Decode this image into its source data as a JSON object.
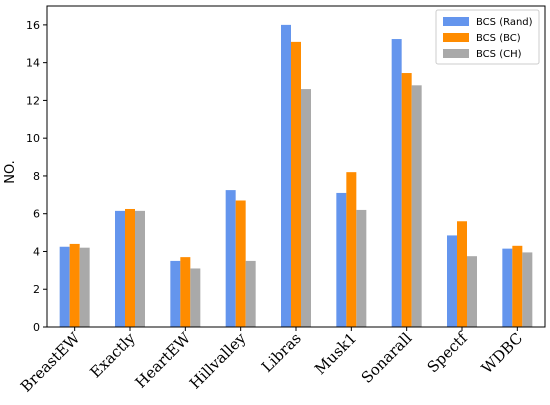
{
  "chart_data": {
    "type": "bar",
    "title": "",
    "xlabel": "",
    "ylabel": "NO.",
    "ylim": [
      0,
      17
    ],
    "yticks": [
      0,
      2,
      4,
      6,
      8,
      10,
      12,
      14,
      16
    ],
    "grid": false,
    "legend_position": "top-right",
    "categories": [
      "BreastEW",
      "Exactly",
      "HeartEW",
      "Hillvalley",
      "Libras",
      "Musk1",
      "Sonarall",
      "Spectf",
      "WDBC"
    ],
    "series": [
      {
        "name": "BCS (Rand)",
        "color": "#6495ED",
        "values": [
          4.25,
          6.15,
          3.5,
          7.25,
          16.0,
          7.1,
          15.25,
          4.85,
          4.15
        ]
      },
      {
        "name": "BCS (BC)",
        "color": "#FF8C00",
        "values": [
          4.4,
          6.25,
          3.7,
          6.7,
          15.1,
          8.2,
          13.45,
          5.6,
          4.3
        ]
      },
      {
        "name": "BCS (CH)",
        "color": "#A9A9A9",
        "values": [
          4.2,
          6.15,
          3.1,
          3.5,
          12.6,
          6.2,
          12.8,
          3.75,
          3.95
        ]
      }
    ]
  }
}
